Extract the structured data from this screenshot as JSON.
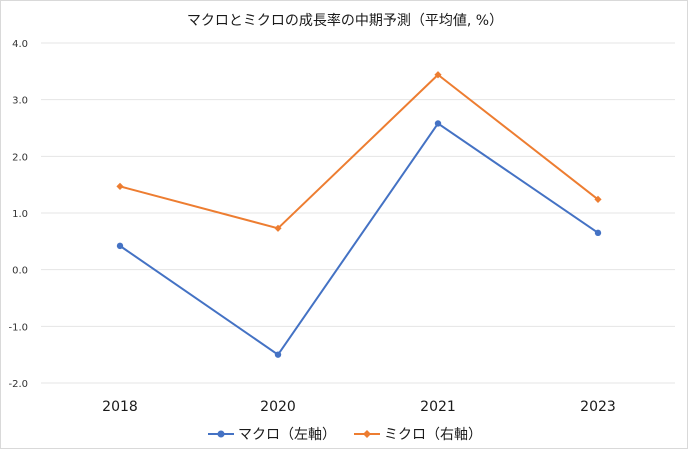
{
  "chart_data": {
    "type": "line",
    "title": "マクロとミクロの成長率の中期予測（平均値, %）",
    "categories": [
      "2018",
      "2020",
      "2021",
      "2023"
    ],
    "ylim": [
      -2.0,
      4.0
    ],
    "yticks": [
      "4.0",
      "3.0",
      "2.0",
      "1.0",
      "0.0",
      "-1.0",
      "-2.0"
    ],
    "grid": true,
    "legend": "bottom",
    "series": [
      {
        "name": "マクロ（左軸）",
        "values": [
          0.42,
          -1.5,
          2.58,
          0.65
        ],
        "color": "#4472c4",
        "marker": "circle"
      },
      {
        "name": "ミクロ（右軸）",
        "values": [
          1.47,
          0.73,
          3.44,
          1.24
        ],
        "color": "#ed7d31",
        "marker": "diamond"
      }
    ]
  }
}
